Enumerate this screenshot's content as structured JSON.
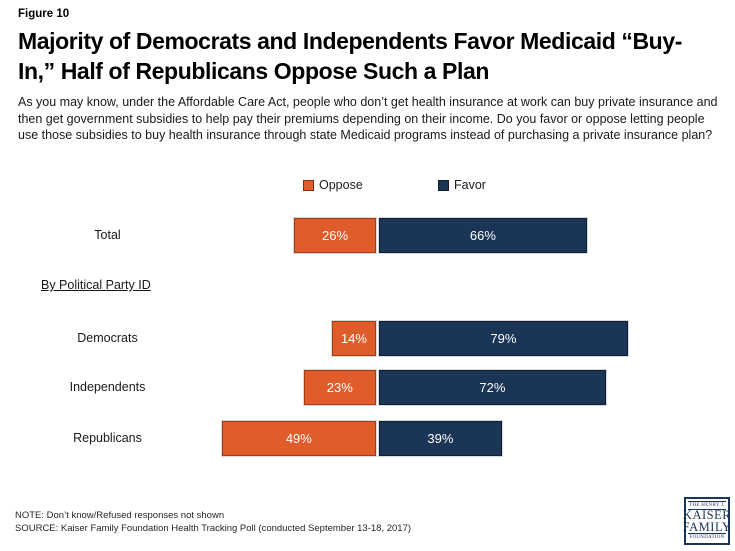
{
  "figure_label": "Figure 10",
  "title_lines": [
    "Majority of Democrats and Independents Favor Medicaid “Buy-",
    "In,” Half of Republicans Oppose Such a Plan"
  ],
  "question": "As you may know, under the Affordable Care Act, people who don’t get health insurance at work can buy private insurance and then get government subsidies to help pay their premiums depending on their income. Do you favor or oppose letting people use those subsidies to buy health insurance through state Medicaid programs instead of purchasing a private insurance plan?",
  "group_label": "By Political Party ID",
  "notes": {
    "note": "NOTE: Don’t know/Refused responses not shown",
    "source": "SOURCE: Kaiser Family Foundation Health Tracking Poll (conducted September 13-18, 2017)"
  },
  "logo": {
    "line1": "THE HENRY J.",
    "line2": "KAISER",
    "line3": "FAMILY",
    "line4": "FOUNDATION"
  },
  "chart_data": {
    "type": "bar",
    "orientation": "horizontal_diverging",
    "title": "Majority of Democrats and Independents Favor Medicaid “Buy-In,” Half of Republicans Oppose Such a Plan",
    "categories": [
      "Total",
      "Democrats",
      "Independents",
      "Republicans"
    ],
    "series": [
      {
        "name": "Oppose",
        "color": "#E05C2B",
        "values": [
          26,
          14,
          23,
          49
        ]
      },
      {
        "name": "Favor",
        "color": "#1A3556",
        "values": [
          66,
          79,
          72,
          39
        ]
      }
    ],
    "value_suffix": "%",
    "legend_position": "top-center",
    "group_label": "By Political Party ID",
    "notes_not_shown": "Don’t know/Refused responses not shown"
  }
}
